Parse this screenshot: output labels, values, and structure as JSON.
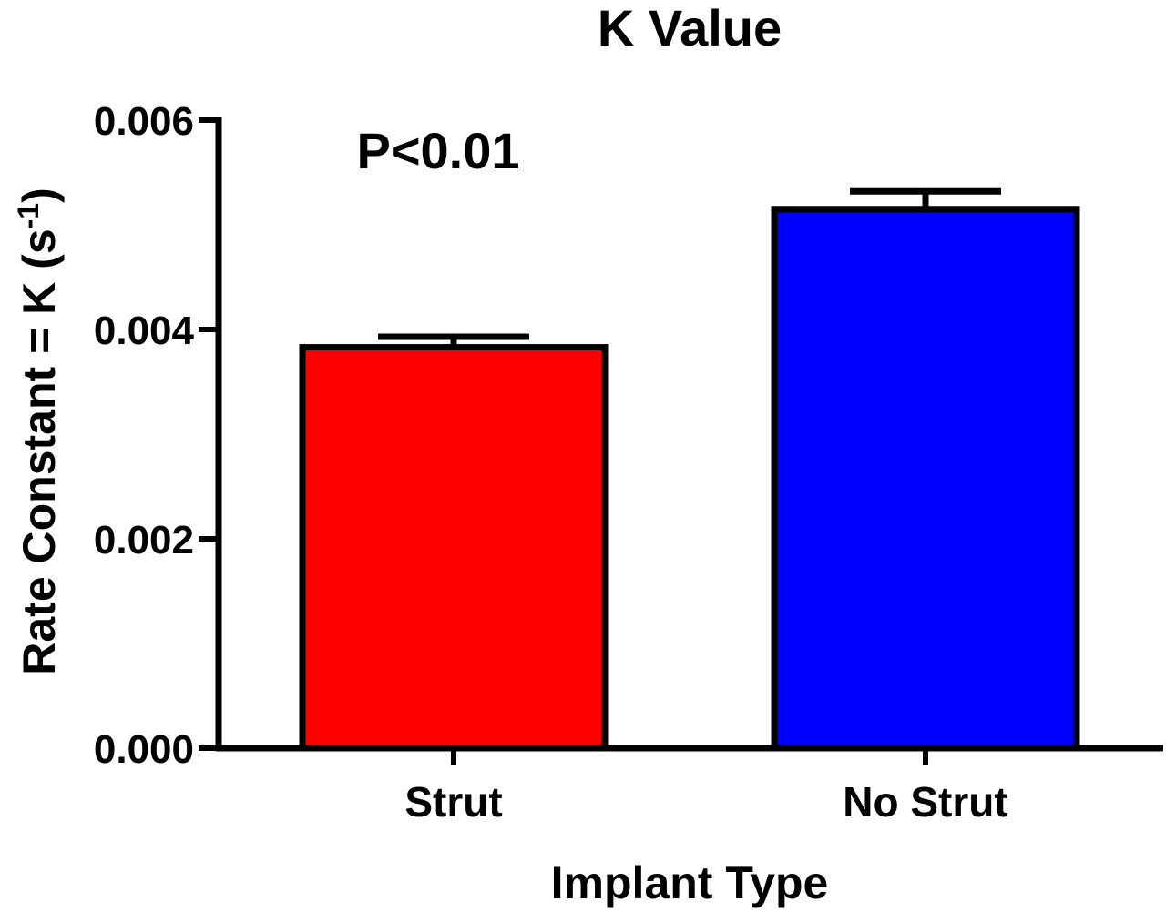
{
  "chart_data": {
    "type": "bar",
    "title": "K Value",
    "xlabel": "Implant Type",
    "ylabel": {
      "main": "Rate Constant = K (s",
      "superscript": "-1",
      "close": ")"
    },
    "categories": [
      "Strut",
      "No Strut"
    ],
    "values": [
      0.00383,
      0.00515
    ],
    "error_bars": [
      0.0001,
      0.00017
    ],
    "colors": [
      "#ff0000",
      "#0000ff"
    ],
    "ylim": [
      0,
      0.006
    ],
    "yticks": [
      0,
      0.002,
      0.004,
      0.006
    ],
    "ytick_labels": [
      "0.000",
      "0.002",
      "0.004",
      "0.006"
    ],
    "annotation": "P<0.01",
    "grid": false,
    "legend": "none"
  }
}
